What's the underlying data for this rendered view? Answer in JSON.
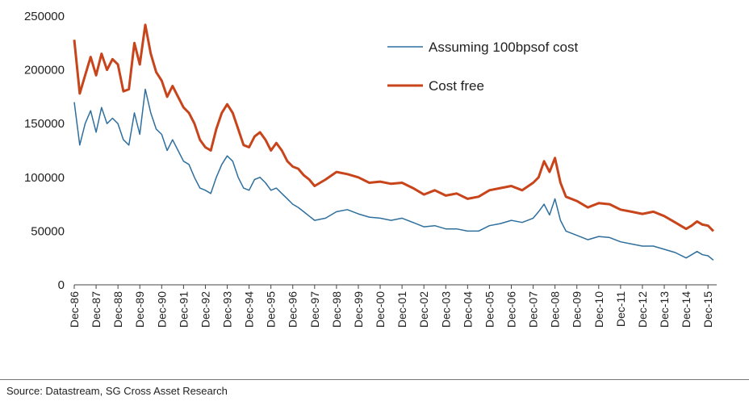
{
  "source": "Source: Datastream, SG Cross Asset Research",
  "chart_data": {
    "type": "line",
    "title": "",
    "xlabel": "",
    "ylabel": "",
    "ylim": [
      0,
      250000
    ],
    "yticks": [
      "0",
      "50000",
      "100000",
      "150000",
      "200000",
      "250000"
    ],
    "xtick_labels": [
      "Dec-86",
      "Dec-87",
      "Dec-88",
      "Dec-89",
      "Dec-90",
      "Dec-91",
      "Dec-92",
      "Dec-93",
      "Dec-94",
      "Dec-95",
      "Dec-96",
      "Dec-97",
      "Dec-98",
      "Dec-99",
      "Dec-00",
      "Dec-01",
      "Dec-02",
      "Dec-03",
      "Dec-04",
      "Dec-05",
      "Dec-06",
      "Dec-07",
      "Dec-08",
      "Dec-09",
      "Dec-10",
      "Dec-11",
      "Dec-12",
      "Dec-13",
      "Dec-14",
      "Dec-15"
    ],
    "grid": false,
    "legend_position": "top-right",
    "series": [
      {
        "name": "Assuming 100bpsof cost",
        "color": "#2e6f9e",
        "width": 1.5,
        "points": [
          [
            "1986-12",
            170000
          ],
          [
            "1987-03",
            130000
          ],
          [
            "1987-06",
            150000
          ],
          [
            "1987-09",
            162000
          ],
          [
            "1987-12",
            142000
          ],
          [
            "1988-03",
            165000
          ],
          [
            "1988-06",
            150000
          ],
          [
            "1988-09",
            155000
          ],
          [
            "1988-12",
            150000
          ],
          [
            "1989-03",
            135000
          ],
          [
            "1989-06",
            130000
          ],
          [
            "1989-09",
            160000
          ],
          [
            "1989-12",
            140000
          ],
          [
            "1990-03",
            182000
          ],
          [
            "1990-06",
            160000
          ],
          [
            "1990-09",
            145000
          ],
          [
            "1990-12",
            140000
          ],
          [
            "1991-03",
            125000
          ],
          [
            "1991-06",
            135000
          ],
          [
            "1991-09",
            125000
          ],
          [
            "1991-12",
            115000
          ],
          [
            "1992-03",
            112000
          ],
          [
            "1992-06",
            100000
          ],
          [
            "1992-09",
            90000
          ],
          [
            "1992-12",
            88000
          ],
          [
            "1993-03",
            85000
          ],
          [
            "1993-06",
            100000
          ],
          [
            "1993-09",
            112000
          ],
          [
            "1993-12",
            120000
          ],
          [
            "1994-03",
            115000
          ],
          [
            "1994-06",
            100000
          ],
          [
            "1994-09",
            90000
          ],
          [
            "1994-12",
            88000
          ],
          [
            "1995-03",
            98000
          ],
          [
            "1995-06",
            100000
          ],
          [
            "1995-09",
            95000
          ],
          [
            "1995-12",
            88000
          ],
          [
            "1996-03",
            90000
          ],
          [
            "1996-06",
            85000
          ],
          [
            "1996-09",
            80000
          ],
          [
            "1996-12",
            75000
          ],
          [
            "1997-03",
            72000
          ],
          [
            "1997-06",
            68000
          ],
          [
            "1997-09",
            64000
          ],
          [
            "1997-12",
            60000
          ],
          [
            "1998-06",
            62000
          ],
          [
            "1998-12",
            68000
          ],
          [
            "1999-06",
            70000
          ],
          [
            "1999-12",
            66000
          ],
          [
            "2000-06",
            63000
          ],
          [
            "2000-12",
            62000
          ],
          [
            "2001-06",
            60000
          ],
          [
            "2001-12",
            62000
          ],
          [
            "2002-06",
            58000
          ],
          [
            "2002-12",
            54000
          ],
          [
            "2003-06",
            55000
          ],
          [
            "2003-12",
            52000
          ],
          [
            "2004-06",
            52000
          ],
          [
            "2004-12",
            50000
          ],
          [
            "2005-06",
            50000
          ],
          [
            "2005-12",
            55000
          ],
          [
            "2006-06",
            57000
          ],
          [
            "2006-12",
            60000
          ],
          [
            "2007-06",
            58000
          ],
          [
            "2007-12",
            62000
          ],
          [
            "2008-03",
            68000
          ],
          [
            "2008-06",
            75000
          ],
          [
            "2008-09",
            65000
          ],
          [
            "2008-12",
            80000
          ],
          [
            "2009-03",
            60000
          ],
          [
            "2009-06",
            50000
          ],
          [
            "2009-12",
            46000
          ],
          [
            "2010-06",
            42000
          ],
          [
            "2010-12",
            45000
          ],
          [
            "2011-06",
            44000
          ],
          [
            "2011-12",
            40000
          ],
          [
            "2012-06",
            38000
          ],
          [
            "2012-12",
            36000
          ],
          [
            "2013-06",
            36000
          ],
          [
            "2013-12",
            33000
          ],
          [
            "2014-06",
            30000
          ],
          [
            "2014-12",
            25000
          ],
          [
            "2015-03",
            28000
          ],
          [
            "2015-06",
            31000
          ],
          [
            "2015-09",
            28000
          ],
          [
            "2015-12",
            27000
          ],
          [
            "2016-03",
            23000
          ]
        ]
      },
      {
        "name": "Cost free",
        "color": "#c8441b",
        "width": 3,
        "points": [
          [
            "1986-12",
            228000
          ],
          [
            "1987-03",
            178000
          ],
          [
            "1987-06",
            195000
          ],
          [
            "1987-09",
            212000
          ],
          [
            "1987-12",
            195000
          ],
          [
            "1988-03",
            215000
          ],
          [
            "1988-06",
            200000
          ],
          [
            "1988-09",
            210000
          ],
          [
            "1988-12",
            205000
          ],
          [
            "1989-03",
            180000
          ],
          [
            "1989-06",
            182000
          ],
          [
            "1989-09",
            225000
          ],
          [
            "1989-12",
            205000
          ],
          [
            "1990-03",
            242000
          ],
          [
            "1990-06",
            215000
          ],
          [
            "1990-09",
            198000
          ],
          [
            "1990-12",
            190000
          ],
          [
            "1991-03",
            175000
          ],
          [
            "1991-06",
            185000
          ],
          [
            "1991-09",
            175000
          ],
          [
            "1991-12",
            165000
          ],
          [
            "1992-03",
            160000
          ],
          [
            "1992-06",
            150000
          ],
          [
            "1992-09",
            135000
          ],
          [
            "1992-12",
            128000
          ],
          [
            "1993-03",
            125000
          ],
          [
            "1993-06",
            145000
          ],
          [
            "1993-09",
            160000
          ],
          [
            "1993-12",
            168000
          ],
          [
            "1994-03",
            160000
          ],
          [
            "1994-06",
            145000
          ],
          [
            "1994-09",
            130000
          ],
          [
            "1994-12",
            128000
          ],
          [
            "1995-03",
            138000
          ],
          [
            "1995-06",
            142000
          ],
          [
            "1995-09",
            135000
          ],
          [
            "1995-12",
            125000
          ],
          [
            "1996-03",
            132000
          ],
          [
            "1996-06",
            125000
          ],
          [
            "1996-09",
            115000
          ],
          [
            "1996-12",
            110000
          ],
          [
            "1997-03",
            108000
          ],
          [
            "1997-06",
            102000
          ],
          [
            "1997-09",
            98000
          ],
          [
            "1997-12",
            92000
          ],
          [
            "1998-06",
            98000
          ],
          [
            "1998-12",
            105000
          ],
          [
            "1999-06",
            103000
          ],
          [
            "1999-12",
            100000
          ],
          [
            "2000-06",
            95000
          ],
          [
            "2000-12",
            96000
          ],
          [
            "2001-06",
            94000
          ],
          [
            "2001-12",
            95000
          ],
          [
            "2002-06",
            90000
          ],
          [
            "2002-12",
            84000
          ],
          [
            "2003-06",
            88000
          ],
          [
            "2003-12",
            83000
          ],
          [
            "2004-06",
            85000
          ],
          [
            "2004-12",
            80000
          ],
          [
            "2005-06",
            82000
          ],
          [
            "2005-12",
            88000
          ],
          [
            "2006-06",
            90000
          ],
          [
            "2006-12",
            92000
          ],
          [
            "2007-06",
            88000
          ],
          [
            "2007-12",
            95000
          ],
          [
            "2008-03",
            100000
          ],
          [
            "2008-06",
            115000
          ],
          [
            "2008-09",
            105000
          ],
          [
            "2008-12",
            118000
          ],
          [
            "2009-03",
            95000
          ],
          [
            "2009-06",
            82000
          ],
          [
            "2009-12",
            78000
          ],
          [
            "2010-06",
            72000
          ],
          [
            "2010-12",
            76000
          ],
          [
            "2011-06",
            75000
          ],
          [
            "2011-12",
            70000
          ],
          [
            "2012-06",
            68000
          ],
          [
            "2012-12",
            66000
          ],
          [
            "2013-06",
            68000
          ],
          [
            "2013-12",
            64000
          ],
          [
            "2014-06",
            58000
          ],
          [
            "2014-12",
            52000
          ],
          [
            "2015-03",
            55000
          ],
          [
            "2015-06",
            59000
          ],
          [
            "2015-09",
            56000
          ],
          [
            "2015-12",
            55000
          ],
          [
            "2016-03",
            50000
          ]
        ]
      }
    ]
  }
}
